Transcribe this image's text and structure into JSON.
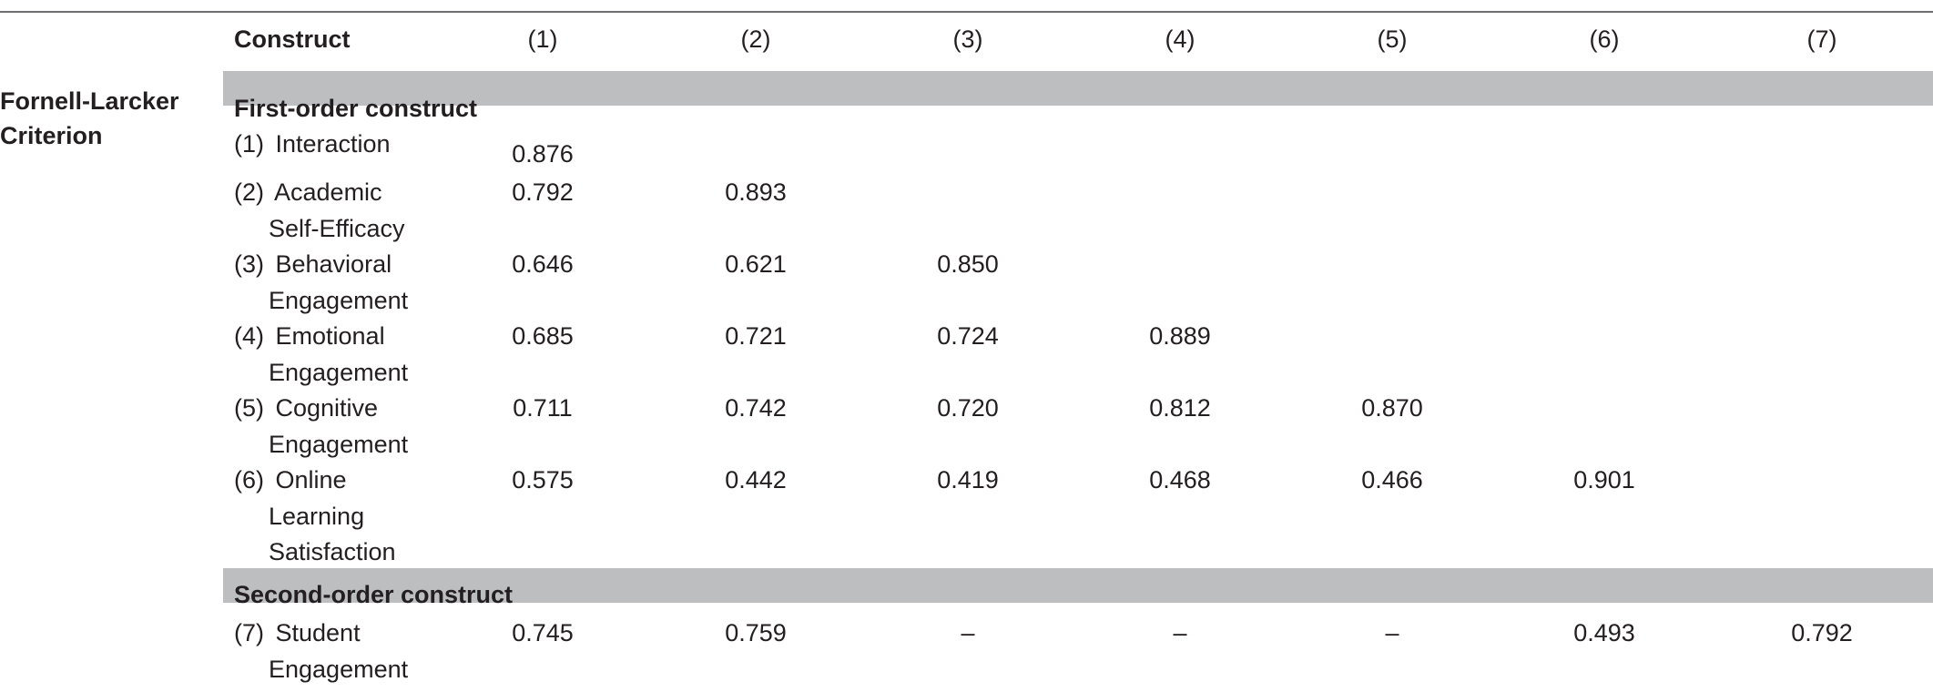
{
  "criterion_label": "Fornell-Larcker Criterion",
  "header": {
    "construct": "Construct",
    "columns": [
      "(1)",
      "(2)",
      "(3)",
      "(4)",
      "(5)",
      "(6)",
      "(7)"
    ]
  },
  "sections": {
    "first_order": "First-order construct",
    "second_order": "Second-order construct"
  },
  "rows": [
    {
      "num": "(1)",
      "label_lines": [
        "Interaction"
      ],
      "values": [
        "0.876",
        "",
        "",
        "",
        "",
        "",
        ""
      ]
    },
    {
      "num": "(2)",
      "label_lines": [
        "Academic",
        "Self-Efficacy"
      ],
      "values": [
        "0.792",
        "0.893",
        "",
        "",
        "",
        "",
        ""
      ]
    },
    {
      "num": "(3)",
      "label_lines": [
        "Behavioral",
        "Engagement"
      ],
      "values": [
        "0.646",
        "0.621",
        "0.850",
        "",
        "",
        "",
        ""
      ]
    },
    {
      "num": "(4)",
      "label_lines": [
        "Emotional",
        "Engagement"
      ],
      "values": [
        "0.685",
        "0.721",
        "0.724",
        "0.889",
        "",
        "",
        ""
      ]
    },
    {
      "num": "(5)",
      "label_lines": [
        "Cognitive",
        "Engagement"
      ],
      "values": [
        "0.711",
        "0.742",
        "0.720",
        "0.812",
        "0.870",
        "",
        ""
      ]
    },
    {
      "num": "(6)",
      "label_lines": [
        "Online",
        "Learning",
        "Satisfaction"
      ],
      "values": [
        "0.575",
        "0.442",
        "0.419",
        "0.468",
        "0.466",
        "0.901",
        ""
      ]
    },
    {
      "num": "(7)",
      "label_lines": [
        "Student",
        "Engagement"
      ],
      "values": [
        "0.745",
        "0.759",
        "–",
        "–",
        "–",
        "0.493",
        "0.792"
      ]
    }
  ]
}
